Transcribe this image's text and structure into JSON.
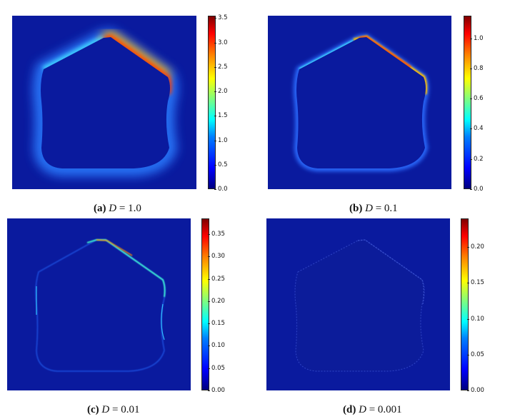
{
  "panels": [
    {
      "label": "(a)",
      "var": "D",
      "eq": "=",
      "value": "1.0",
      "colorbar_ticks": [
        "0.0",
        "0.5",
        "1.0",
        "1.5",
        "2.0",
        "2.5",
        "3.0",
        "3.5"
      ],
      "vmax": 3.55
    },
    {
      "label": "(b)",
      "var": "D",
      "eq": "=",
      "value": "0.1",
      "colorbar_ticks": [
        "0.0",
        "0.2",
        "0.4",
        "0.6",
        "0.8",
        "1.0"
      ],
      "vmax": 1.15
    },
    {
      "label": "(c)",
      "var": "D",
      "eq": "=",
      "value": "0.01",
      "colorbar_ticks": [
        "0.00",
        "0.05",
        "0.10",
        "0.15",
        "0.20",
        "0.25",
        "0.30",
        "0.35"
      ],
      "vmax": 0.385
    },
    {
      "label": "(d)",
      "var": "D",
      "eq": "=",
      "value": "0.001",
      "colorbar_ticks": [
        "0.00",
        "0.05",
        "0.10",
        "0.15",
        "0.20"
      ],
      "vmax": 0.24
    }
  ],
  "colors": {
    "background_field": "#0b1a9c",
    "colormap": "jet"
  }
}
